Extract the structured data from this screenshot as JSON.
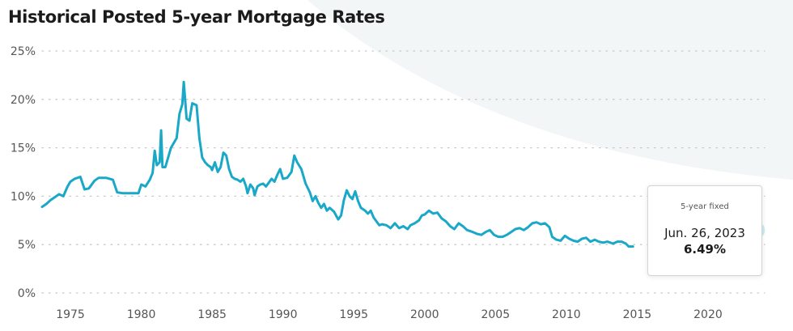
{
  "page_title": "Historical Posted 5-year Mortgage Rates",
  "colors": {
    "line": "#1aa8c8",
    "grid": "#c8c8c8",
    "background_shape": "#f2f6f7",
    "text": "#1b1b1b",
    "tick_text": "#555555"
  },
  "tooltip": {
    "label": "5-year fixed",
    "date": "Jun. 26, 2023",
    "value": "6.49%"
  },
  "chart_data": {
    "type": "line",
    "title": "Historical Posted 5-year Mortgage Rates",
    "xlabel": "",
    "ylabel": "",
    "xlim": [
      1973,
      2024
    ],
    "ylim": [
      0,
      25
    ],
    "grid": "horizontal dotted",
    "legend": "none",
    "x_ticks": [
      1975,
      1980,
      1985,
      1990,
      1995,
      2000,
      2005,
      2010,
      2015,
      2020
    ],
    "x_tick_labels": [
      "1975",
      "1980",
      "1985",
      "1990",
      "1995",
      "2000",
      "2005",
      "2010",
      "2015",
      "2020"
    ],
    "y_ticks": [
      0,
      5,
      10,
      15,
      20,
      25
    ],
    "y_tick_labels": [
      "0%",
      "5%",
      "10%",
      "15%",
      "20%",
      "25%"
    ],
    "series": [
      {
        "values": [
          [
            1973.0,
            8.9
          ],
          [
            1973.3,
            9.2
          ],
          [
            1973.6,
            9.6
          ],
          [
            1973.9,
            9.9
          ],
          [
            1974.2,
            10.2
          ],
          [
            1974.5,
            10.0
          ],
          [
            1974.8,
            11.0
          ],
          [
            1975.0,
            11.5
          ],
          [
            1975.3,
            11.8
          ],
          [
            1975.7,
            12.0
          ],
          [
            1976.0,
            10.7
          ],
          [
            1976.3,
            10.8
          ],
          [
            1976.7,
            11.6
          ],
          [
            1977.0,
            11.9
          ],
          [
            1977.5,
            11.9
          ],
          [
            1978.0,
            11.7
          ],
          [
            1978.3,
            10.4
          ],
          [
            1978.7,
            10.3
          ],
          [
            1979.0,
            10.3
          ],
          [
            1979.4,
            10.3
          ],
          [
            1979.8,
            10.3
          ],
          [
            1980.0,
            11.2
          ],
          [
            1980.3,
            11.0
          ],
          [
            1980.6,
            11.7
          ],
          [
            1980.8,
            12.4
          ],
          [
            1980.95,
            14.7
          ],
          [
            1981.1,
            13.2
          ],
          [
            1981.3,
            13.5
          ],
          [
            1981.4,
            16.8
          ],
          [
            1981.5,
            13.0
          ],
          [
            1981.7,
            13.0
          ],
          [
            1981.9,
            14.0
          ],
          [
            1982.1,
            15.0
          ],
          [
            1982.3,
            15.5
          ],
          [
            1982.5,
            16.0
          ],
          [
            1982.7,
            18.5
          ],
          [
            1982.9,
            19.5
          ],
          [
            1983.0,
            21.8
          ],
          [
            1983.2,
            18.0
          ],
          [
            1983.4,
            17.8
          ],
          [
            1983.6,
            19.6
          ],
          [
            1983.9,
            19.4
          ],
          [
            1984.1,
            16.0
          ],
          [
            1984.3,
            14.0
          ],
          [
            1984.5,
            13.5
          ],
          [
            1984.7,
            13.2
          ],
          [
            1984.9,
            13.0
          ],
          [
            1985.0,
            12.7
          ],
          [
            1985.2,
            13.5
          ],
          [
            1985.4,
            12.5
          ],
          [
            1985.6,
            13.0
          ],
          [
            1985.8,
            14.5
          ],
          [
            1986.0,
            14.2
          ],
          [
            1986.2,
            12.8
          ],
          [
            1986.4,
            12.0
          ],
          [
            1986.6,
            11.8
          ],
          [
            1986.8,
            11.7
          ],
          [
            1987.0,
            11.5
          ],
          [
            1987.2,
            11.8
          ],
          [
            1987.4,
            11.0
          ],
          [
            1987.5,
            10.3
          ],
          [
            1987.7,
            11.2
          ],
          [
            1987.9,
            10.8
          ],
          [
            1988.0,
            10.1
          ],
          [
            1988.2,
            11.0
          ],
          [
            1988.4,
            11.2
          ],
          [
            1988.6,
            11.3
          ],
          [
            1988.8,
            11.0
          ],
          [
            1989.0,
            11.4
          ],
          [
            1989.2,
            11.8
          ],
          [
            1989.4,
            11.5
          ],
          [
            1989.6,
            12.2
          ],
          [
            1989.8,
            12.8
          ],
          [
            1990.0,
            11.8
          ],
          [
            1990.3,
            11.9
          ],
          [
            1990.6,
            12.5
          ],
          [
            1990.8,
            14.2
          ],
          [
            1991.0,
            13.5
          ],
          [
            1991.3,
            12.8
          ],
          [
            1991.6,
            11.3
          ],
          [
            1991.9,
            10.4
          ],
          [
            1992.1,
            9.5
          ],
          [
            1992.3,
            10.0
          ],
          [
            1992.5,
            9.3
          ],
          [
            1992.7,
            8.8
          ],
          [
            1992.9,
            9.2
          ],
          [
            1993.1,
            8.5
          ],
          [
            1993.3,
            8.8
          ],
          [
            1993.6,
            8.4
          ],
          [
            1993.9,
            7.6
          ],
          [
            1994.1,
            8.0
          ],
          [
            1994.3,
            9.6
          ],
          [
            1994.5,
            10.6
          ],
          [
            1994.7,
            10.0
          ],
          [
            1994.9,
            9.7
          ],
          [
            1995.1,
            10.5
          ],
          [
            1995.3,
            9.5
          ],
          [
            1995.5,
            8.8
          ],
          [
            1995.8,
            8.5
          ],
          [
            1996.0,
            8.2
          ],
          [
            1996.2,
            8.5
          ],
          [
            1996.4,
            7.8
          ],
          [
            1996.6,
            7.4
          ],
          [
            1996.8,
            7.0
          ],
          [
            1997.0,
            7.1
          ],
          [
            1997.3,
            7.0
          ],
          [
            1997.6,
            6.7
          ],
          [
            1997.9,
            7.2
          ],
          [
            1998.2,
            6.7
          ],
          [
            1998.5,
            6.9
          ],
          [
            1998.8,
            6.6
          ],
          [
            1999.0,
            7.0
          ],
          [
            1999.3,
            7.2
          ],
          [
            1999.6,
            7.5
          ],
          [
            1999.8,
            8.0
          ],
          [
            2000.0,
            8.1
          ],
          [
            2000.3,
            8.5
          ],
          [
            2000.6,
            8.2
          ],
          [
            2000.9,
            8.3
          ],
          [
            2001.2,
            7.7
          ],
          [
            2001.5,
            7.4
          ],
          [
            2001.8,
            6.9
          ],
          [
            2002.1,
            6.6
          ],
          [
            2002.4,
            7.2
          ],
          [
            2002.7,
            6.9
          ],
          [
            2003.0,
            6.5
          ],
          [
            2003.4,
            6.3
          ],
          [
            2003.7,
            6.1
          ],
          [
            2004.0,
            6.0
          ],
          [
            2004.3,
            6.3
          ],
          [
            2004.6,
            6.5
          ],
          [
            2004.9,
            6.0
          ],
          [
            2005.2,
            5.8
          ],
          [
            2005.5,
            5.8
          ],
          [
            2005.8,
            6.0
          ],
          [
            2006.1,
            6.3
          ],
          [
            2006.4,
            6.6
          ],
          [
            2006.7,
            6.7
          ],
          [
            2007.0,
            6.5
          ],
          [
            2007.3,
            6.8
          ],
          [
            2007.6,
            7.2
          ],
          [
            2007.9,
            7.3
          ],
          [
            2008.2,
            7.1
          ],
          [
            2008.5,
            7.2
          ],
          [
            2008.8,
            6.8
          ],
          [
            2009.0,
            5.8
          ],
          [
            2009.3,
            5.5
          ],
          [
            2009.6,
            5.4
          ],
          [
            2009.9,
            5.9
          ],
          [
            2010.2,
            5.6
          ],
          [
            2010.5,
            5.4
          ],
          [
            2010.8,
            5.3
          ],
          [
            2011.1,
            5.6
          ],
          [
            2011.4,
            5.7
          ],
          [
            2011.7,
            5.3
          ],
          [
            2012.0,
            5.5
          ],
          [
            2012.3,
            5.3
          ],
          [
            2012.6,
            5.2
          ],
          [
            2012.9,
            5.3
          ],
          [
            2013.3,
            5.1
          ],
          [
            2013.6,
            5.3
          ],
          [
            2013.9,
            5.3
          ],
          [
            2014.2,
            5.1
          ],
          [
            2014.4,
            4.8
          ],
          [
            2014.7,
            4.8
          ]
        ]
      }
    ],
    "marker": {
      "x": 2023.45,
      "y": 6.49
    }
  }
}
